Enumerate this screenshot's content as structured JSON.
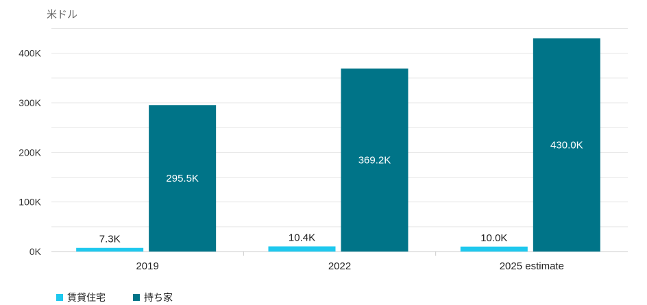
{
  "unit_label": "米ドル",
  "colors": {
    "rental": "#1ec8ee",
    "owned": "#007488",
    "grid": "#e6e6e6",
    "axis": "#cccccc"
  },
  "chart_data": {
    "type": "bar",
    "categories": [
      "2019",
      "2022",
      "2025 estimate"
    ],
    "series": [
      {
        "name": "賃貸住宅",
        "values": [
          7.3,
          10.4,
          10.0
        ],
        "labels": [
          "7.3K",
          "10.4K",
          "10.0K"
        ]
      },
      {
        "name": "持ち家",
        "values": [
          295.5,
          369.2,
          430.0
        ],
        "labels": [
          "295.5K",
          "369.2K",
          "430.0K"
        ]
      }
    ],
    "y_ticks": [
      "0K",
      "100K",
      "200K",
      "300K",
      "400K"
    ],
    "ylim": [
      0,
      450
    ],
    "grid": true,
    "legend_position": "bottom-left"
  }
}
